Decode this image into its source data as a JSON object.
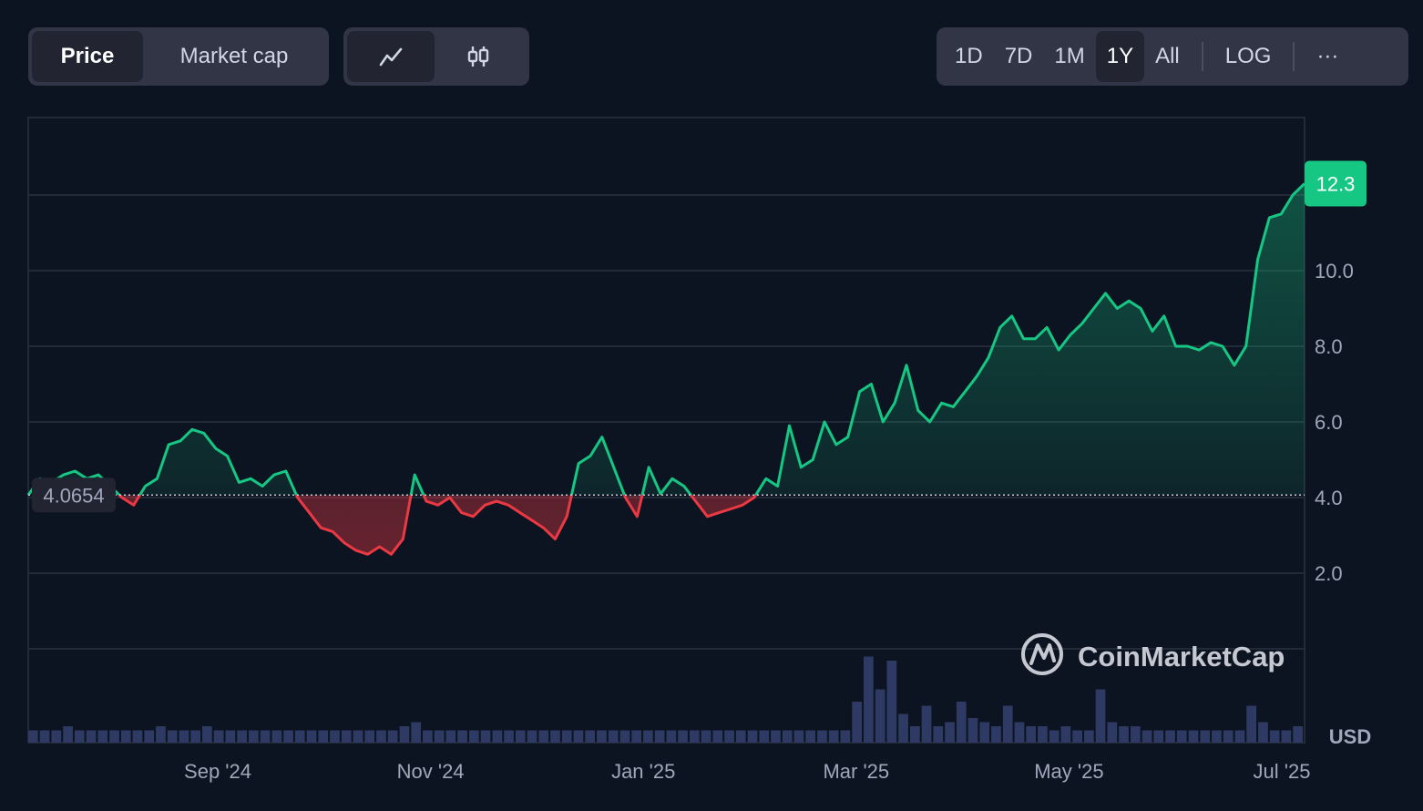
{
  "controls": {
    "type_tabs": [
      {
        "label": "Price",
        "active": true
      },
      {
        "label": "Market cap",
        "active": false
      }
    ],
    "chart_style": [
      {
        "icon": "line-chart-icon",
        "active": true
      },
      {
        "icon": "candlestick-chart-icon",
        "active": false
      }
    ],
    "ranges": [
      {
        "label": "1D",
        "active": false
      },
      {
        "label": "7D",
        "active": false
      },
      {
        "label": "1M",
        "active": false
      },
      {
        "label": "1Y",
        "active": true
      },
      {
        "label": "All",
        "active": false
      }
    ],
    "log_label": "LOG",
    "more_label": "···"
  },
  "watermark": "CoinMarketCap",
  "currency": "USD",
  "colors": {
    "up": "#16c784",
    "down": "#ea3943",
    "background": "#0d1421",
    "volume": "#2e3a63"
  },
  "chart_data": {
    "type": "area",
    "title": "",
    "xlabel": "",
    "ylabel": "",
    "x_ticks": [
      "Sep '24",
      "Nov '24",
      "Jan '25",
      "Mar '25",
      "May '25",
      "Jul '25"
    ],
    "y_ticks": [
      "2.0",
      "4.0",
      "6.0",
      "8.0",
      "10.0"
    ],
    "y_range": [
      0,
      14
    ],
    "baseline": 4.0654,
    "baseline_label": "4.0654",
    "current_price_label": "12.3",
    "current_price": 12.3,
    "series": [
      {
        "values": [
          4.0654,
          4.5,
          4.4,
          4.6,
          4.7,
          4.5,
          4.6,
          4.3,
          4.0,
          3.8,
          4.3,
          4.5,
          5.4,
          5.5,
          5.8,
          5.7,
          5.3,
          5.1,
          4.4,
          4.5,
          4.3,
          4.6,
          4.7,
          4.0,
          3.6,
          3.2,
          3.1,
          2.8,
          2.6,
          2.5,
          2.7,
          2.5,
          2.9,
          4.6,
          3.9,
          3.8,
          4.0,
          3.6,
          3.5,
          3.8,
          3.9,
          3.8,
          3.6,
          3.4,
          3.2,
          2.9,
          3.5,
          4.9,
          5.1,
          5.6,
          4.8,
          4.0,
          3.5,
          4.8,
          4.1,
          4.5,
          4.3,
          3.9,
          3.5,
          3.6,
          3.7,
          3.8,
          4.0,
          4.5,
          4.3,
          5.9,
          4.8,
          5.0,
          6.0,
          5.4,
          5.6,
          6.8,
          7.0,
          6.0,
          6.5,
          7.5,
          6.3,
          6.0,
          6.5,
          6.4,
          6.8,
          7.2,
          7.7,
          8.5,
          8.8,
          8.2,
          8.2,
          8.5,
          7.9,
          8.3,
          8.6,
          9.0,
          9.4,
          9.0,
          9.2,
          9.0,
          8.4,
          8.8,
          8.0,
          8.0,
          7.9,
          8.1,
          8.0,
          7.5,
          8.0,
          10.3,
          11.4,
          11.5,
          12.0,
          12.3
        ]
      }
    ],
    "volume": {
      "values": [
        0.3,
        0.3,
        0.3,
        0.4,
        0.3,
        0.3,
        0.3,
        0.3,
        0.3,
        0.3,
        0.3,
        0.4,
        0.3,
        0.3,
        0.3,
        0.4,
        0.3,
        0.3,
        0.3,
        0.3,
        0.3,
        0.3,
        0.3,
        0.3,
        0.3,
        0.3,
        0.3,
        0.3,
        0.3,
        0.3,
        0.3,
        0.3,
        0.4,
        0.5,
        0.3,
        0.3,
        0.3,
        0.3,
        0.3,
        0.3,
        0.3,
        0.3,
        0.3,
        0.3,
        0.3,
        0.3,
        0.3,
        0.3,
        0.3,
        0.3,
        0.3,
        0.3,
        0.3,
        0.3,
        0.3,
        0.3,
        0.3,
        0.3,
        0.3,
        0.3,
        0.3,
        0.3,
        0.3,
        0.3,
        0.3,
        0.3,
        0.3,
        0.3,
        0.3,
        0.3,
        0.3,
        1.0,
        2.1,
        1.3,
        2.0,
        0.7,
        0.4,
        0.9,
        0.4,
        0.5,
        1.0,
        0.6,
        0.5,
        0.4,
        0.9,
        0.5,
        0.4,
        0.4,
        0.3,
        0.4,
        0.3,
        0.3,
        1.3,
        0.5,
        0.4,
        0.4,
        0.3,
        0.3,
        0.3,
        0.3,
        0.3,
        0.3,
        0.3,
        0.3,
        0.3,
        0.9,
        0.5,
        0.3,
        0.3,
        0.4
      ]
    }
  }
}
